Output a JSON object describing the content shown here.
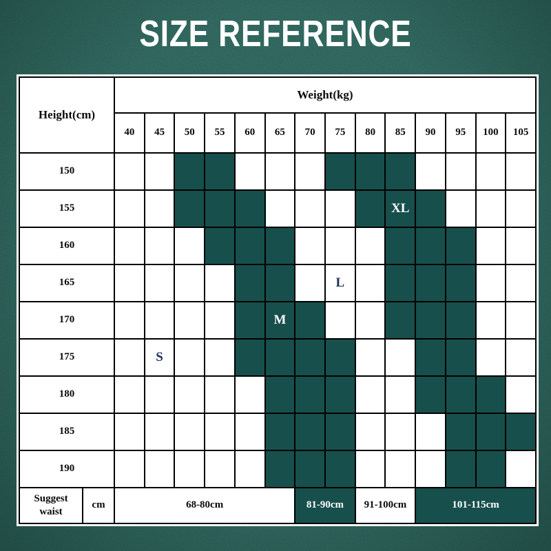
{
  "title": "SIZE REFERENCE",
  "colors": {
    "background": "#2b5b53",
    "cell_fill": "#174f4c",
    "grid_line": "#000000",
    "panel": "#ffffff",
    "size_label_on_white": "#1d3059",
    "size_label_on_fill": "#ffffff",
    "title_text": "#ffffff"
  },
  "chart_data": {
    "type": "heatmap",
    "title": "SIZE REFERENCE",
    "corner_header": "Height(cm)",
    "column_group_header": "Weight(kg)",
    "columns": [
      "40",
      "45",
      "50",
      "55",
      "60",
      "65",
      "70",
      "75",
      "80",
      "85",
      "90",
      "95",
      "100",
      "105"
    ],
    "rows": [
      {
        "height": "150",
        "filled": [
          "50",
          "55",
          "75",
          "80",
          "85"
        ],
        "labels": {}
      },
      {
        "height": "155",
        "filled": [
          "50",
          "55",
          "60",
          "80",
          "85",
          "90"
        ],
        "labels": {
          "85": "XL"
        }
      },
      {
        "height": "160",
        "filled": [
          "55",
          "60",
          "65",
          "85",
          "90",
          "95"
        ],
        "labels": {}
      },
      {
        "height": "165",
        "filled": [
          "60",
          "65",
          "85",
          "90",
          "95"
        ],
        "labels": {
          "75": "L"
        }
      },
      {
        "height": "170",
        "filled": [
          "60",
          "65",
          "70",
          "85",
          "90",
          "95"
        ],
        "labels": {
          "65": "M"
        }
      },
      {
        "height": "175",
        "filled": [
          "60",
          "65",
          "70",
          "75",
          "90",
          "95"
        ],
        "labels": {
          "45": "S"
        }
      },
      {
        "height": "180",
        "filled": [
          "65",
          "70",
          "75",
          "90",
          "95",
          "100"
        ],
        "labels": {}
      },
      {
        "height": "185",
        "filled": [
          "65",
          "70",
          "75",
          "95",
          "100",
          "105"
        ],
        "labels": {}
      },
      {
        "height": "190",
        "filled": [
          "65",
          "70",
          "75",
          "95",
          "100"
        ],
        "labels": {}
      }
    ],
    "footer": {
      "row_header_line1": "Suggest",
      "row_header_line2": "waist",
      "unit": "cm",
      "segments": [
        {
          "label": "68-80cm",
          "span": 6,
          "filled": false
        },
        {
          "label": "81-90cm",
          "span": 2,
          "filled": true
        },
        {
          "label": "91-100cm",
          "span": 2,
          "filled": false
        },
        {
          "label": "101-115cm",
          "span": 4,
          "filled": true
        }
      ]
    }
  }
}
